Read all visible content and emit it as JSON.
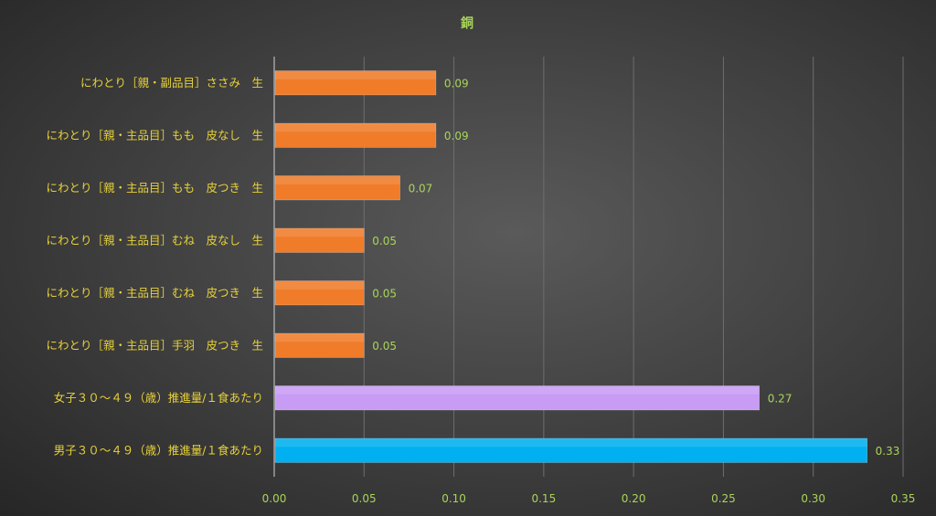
{
  "chart_data": {
    "type": "bar",
    "orientation": "horizontal",
    "title": "銅",
    "categories": [
      "にわとり［親・副品目］ささみ　生",
      "にわとり［親・主品目］もも　皮なし　生",
      "にわとり［親・主品目］もも　皮つき　生",
      "にわとり［親・主品目］むね　皮なし　生",
      "にわとり［親・主品目］むね　皮つき　生",
      "にわとり［親・主品目］手羽　皮つき　生",
      "女子３０～４９（歳）推進量/１食あたり",
      "男子３０～４９（歳）推進量/１食あたり"
    ],
    "values": [
      0.09,
      0.09,
      0.07,
      0.05,
      0.05,
      0.05,
      0.27,
      0.33
    ],
    "data_labels": [
      "0.09",
      "0.09",
      "0.07",
      "0.05",
      "0.05",
      "0.05",
      "0.27",
      "0.33"
    ],
    "bar_colors": [
      "#f07c2a",
      "#f07c2a",
      "#f07c2a",
      "#f07c2a",
      "#f07c2a",
      "#f07c2a",
      "#c89bf5",
      "#00b0f0"
    ],
    "xlim": [
      0,
      0.35
    ],
    "x_ticks": [
      0,
      0.05,
      0.1,
      0.15,
      0.2,
      0.25,
      0.3,
      0.35
    ],
    "x_tick_labels": [
      "0.00",
      "0.05",
      "0.10",
      "0.15",
      "0.20",
      "0.25",
      "0.30",
      "0.35"
    ],
    "xlabel": "",
    "ylabel": "",
    "grid": "vertical",
    "legend": "none"
  }
}
